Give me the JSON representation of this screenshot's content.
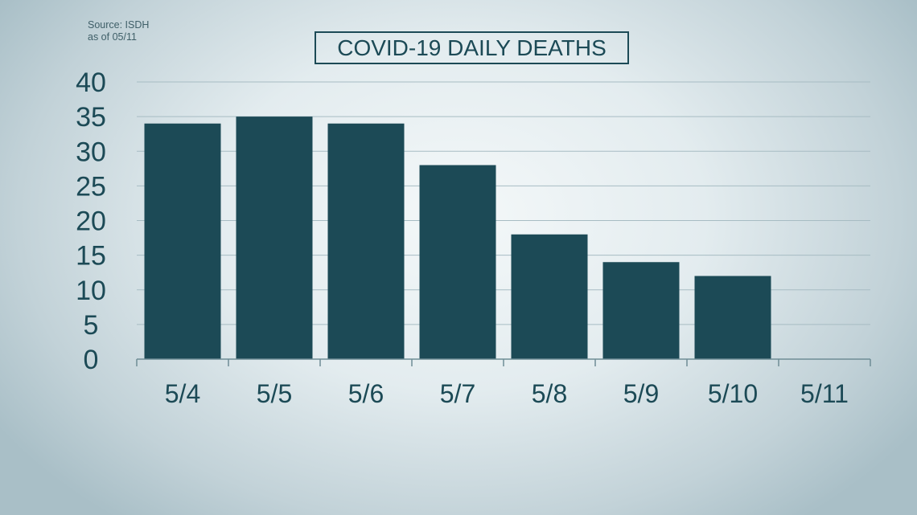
{
  "source": {
    "line1": "Source: ISDH",
    "line2": "as of 05/11"
  },
  "colors": {
    "bar": "#1c4a56",
    "text": "#1c4a56",
    "grid": "#a7bcc3",
    "axis": "#6f8d96"
  },
  "chart_data": {
    "type": "bar",
    "title": "COVID-19 DAILY DEATHS",
    "xlabel": "",
    "ylabel": "",
    "categories": [
      "5/4",
      "5/5",
      "5/6",
      "5/7",
      "5/8",
      "5/9",
      "5/10",
      "5/11"
    ],
    "values": [
      34,
      35,
      34,
      28,
      18,
      14,
      12,
      0
    ],
    "ylim": [
      0,
      40
    ],
    "yticks": [
      0,
      5,
      10,
      15,
      20,
      25,
      30,
      35,
      40
    ],
    "grid": true,
    "legend": "none"
  }
}
